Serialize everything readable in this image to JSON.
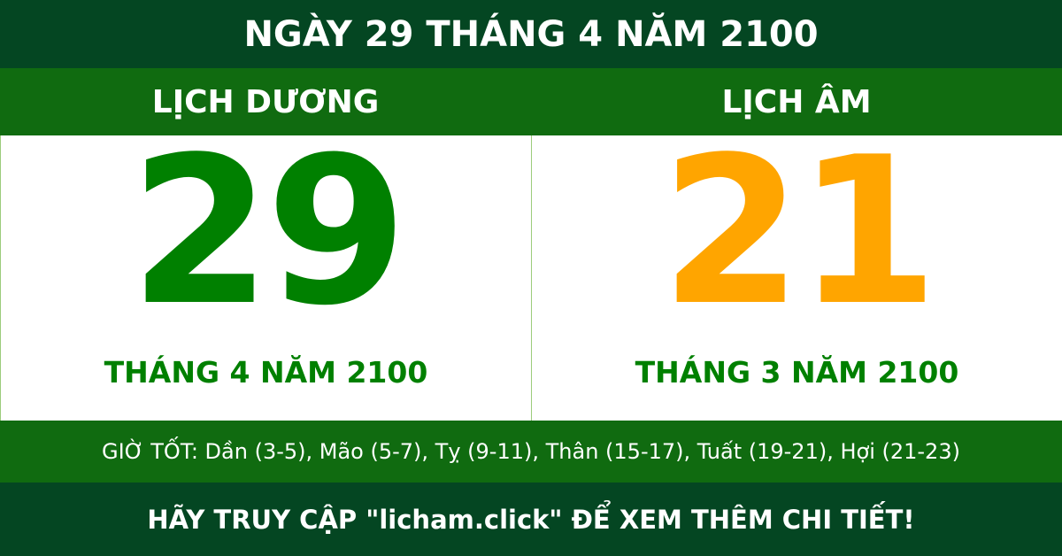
{
  "title": "NGÀY 29 THÁNG 4 NĂM 2100",
  "solar": {
    "heading": "LỊCH DƯƠNG",
    "day": "29",
    "month_year": "THÁNG 4 NĂM 2100"
  },
  "lunar": {
    "heading": "LỊCH ÂM",
    "day": "21",
    "month_year": "THÁNG 3 NĂM 2100"
  },
  "good_hours": "GIỜ TỐT: Dần (3-5), Mão (5-7), Tỵ (9-11), Thân (15-17), Tuất (19-21), Hợi (21-23)",
  "footer": "HÃY TRUY CẬP \"licham.click\" ĐỂ XEM THÊM CHI TIẾT!",
  "colors": {
    "dark_green": "#044622",
    "green": "#106b10",
    "solar_day": "#008000",
    "lunar_day": "#ffa500"
  }
}
